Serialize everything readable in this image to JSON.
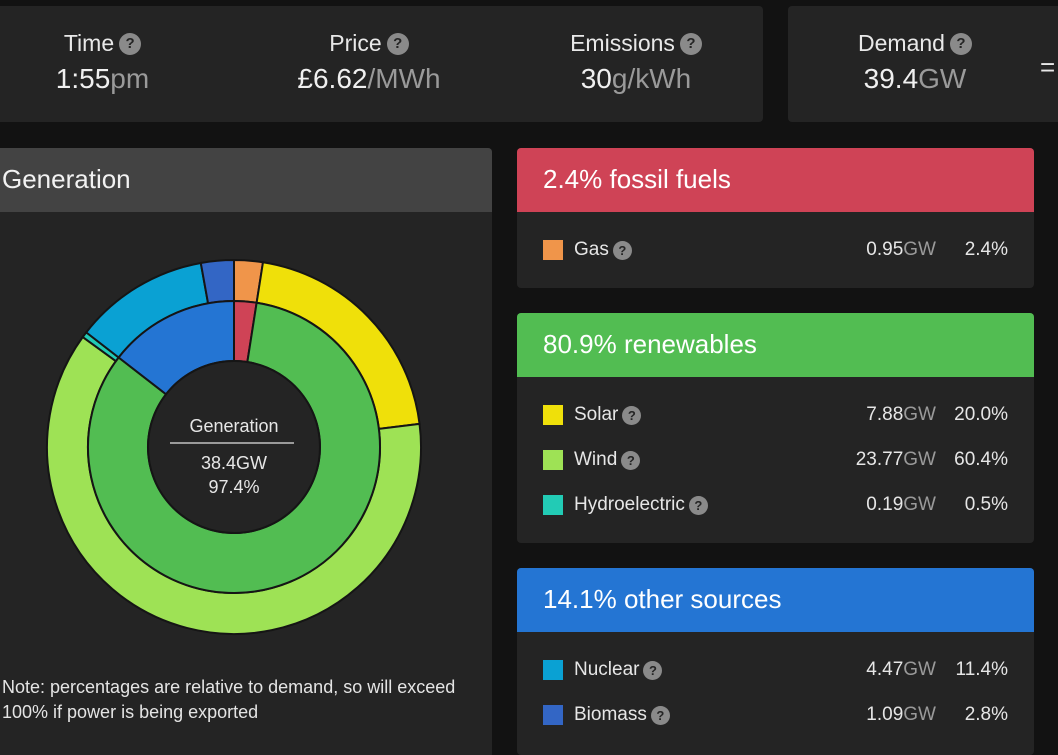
{
  "stats": {
    "time": {
      "label": "Time",
      "value": "1:55",
      "unit": "pm"
    },
    "price": {
      "label": "Price",
      "value": "£6.62",
      "unit": "/MWh"
    },
    "emissions": {
      "label": "Emissions",
      "value": "30",
      "unit": "g/kWh"
    },
    "demand": {
      "label": "Demand",
      "value": "39.4",
      "unit": "GW"
    },
    "equals": "=",
    "help_glyph": "?"
  },
  "generation": {
    "title": "Generation",
    "center_label": "Generation",
    "center_gw": "38.4GW",
    "center_pct": "97.4%",
    "note": "Note: percentages are relative to demand, so will exceed 100% if power is being exported"
  },
  "fossil": {
    "title": "2.4% fossil fuels",
    "color": "#cf4356",
    "rows": [
      {
        "name": "Gas",
        "gw": "0.95",
        "unit": "GW",
        "pct": "2.4%",
        "color": "#f0954a"
      }
    ]
  },
  "renewables": {
    "title": "80.9% renewables",
    "color": "#52bd52",
    "rows": [
      {
        "name": "Solar",
        "gw": "7.88",
        "unit": "GW",
        "pct": "20.0%",
        "color": "#efe00a"
      },
      {
        "name": "Wind",
        "gw": "23.77",
        "unit": "GW",
        "pct": "60.4%",
        "color": "#9ee255"
      },
      {
        "name": "Hydroelectric",
        "gw": "0.19",
        "unit": "GW",
        "pct": "0.5%",
        "color": "#22cbb5"
      }
    ]
  },
  "other": {
    "title": "14.1% other sources",
    "color": "#2475d3",
    "rows": [
      {
        "name": "Nuclear",
        "gw": "4.47",
        "unit": "GW",
        "pct": "11.4%",
        "color": "#0aa1d3"
      },
      {
        "name": "Biomass",
        "gw": "1.09",
        "unit": "GW",
        "pct": "2.8%",
        "color": "#3366c5"
      }
    ]
  },
  "chart_data": {
    "type": "pie",
    "title": "Generation",
    "center_text": [
      "Generation",
      "38.4GW",
      "97.4%"
    ],
    "outer_ring": {
      "categories": [
        "Gas",
        "Solar",
        "Wind",
        "Hydroelectric",
        "Nuclear",
        "Biomass"
      ],
      "values": [
        0.95,
        7.88,
        23.77,
        0.19,
        4.47,
        1.09
      ],
      "colors": [
        "#f0954a",
        "#efe00a",
        "#9ee255",
        "#22cbb5",
        "#0aa1d3",
        "#3366c5"
      ]
    },
    "inner_ring": {
      "categories": [
        "fossil fuels",
        "renewables",
        "other sources"
      ],
      "values": [
        0.95,
        31.84,
        5.56
      ],
      "colors": [
        "#cf4356",
        "#52bd52",
        "#2475d3"
      ]
    }
  }
}
